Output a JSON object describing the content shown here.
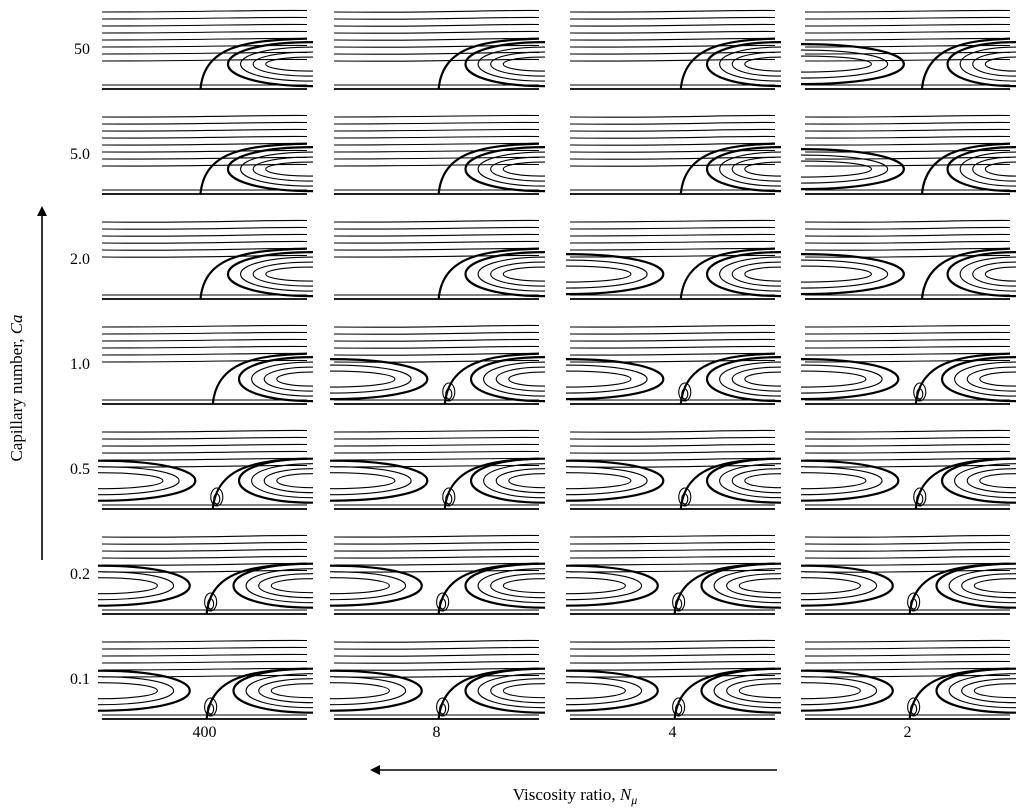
{
  "y_axis": {
    "label_text": "Capillary number, ",
    "label_symbol": "Ca",
    "ticks": [
      "50",
      "5.0",
      "2.0",
      "1.0",
      "0.5",
      "0.2",
      "0.1"
    ]
  },
  "x_axis": {
    "label_text": "Viscosity ratio, ",
    "label_symbol": "N",
    "label_subscript": "μ",
    "ticks": [
      "400",
      "8",
      "4",
      "2"
    ]
  },
  "grid": {
    "rows": 7,
    "columns": 4
  }
}
